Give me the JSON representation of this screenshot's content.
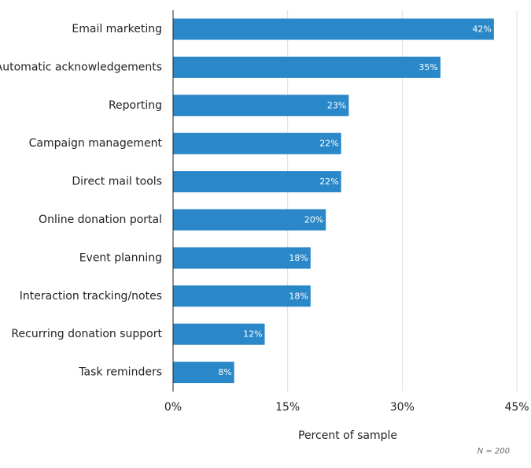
{
  "chart_data": {
    "type": "bar",
    "orientation": "horizontal",
    "categories": [
      "Email marketing",
      "Automatic acknowledgements",
      "Reporting",
      "Campaign management",
      "Direct mail tools",
      "Online donation portal",
      "Event planning",
      "Interaction tracking/notes",
      "Recurring donation support",
      "Task reminders"
    ],
    "values": [
      42,
      35,
      23,
      22,
      22,
      20,
      18,
      18,
      12,
      8
    ],
    "value_labels": [
      "42%",
      "35%",
      "23%",
      "22%",
      "22%",
      "20%",
      "18%",
      "18%",
      "12%",
      "8%"
    ],
    "xlabel": "Percent of sample",
    "xlim": [
      0,
      45
    ],
    "xticks": [
      0,
      15,
      30,
      45
    ],
    "xtick_labels": [
      "0%",
      "15%",
      "30%",
      "45%"
    ],
    "grid": "vertical",
    "legend": "none",
    "note": "N = 200",
    "colors": {
      "bar": "#2a88c8",
      "grid": "#dddddd",
      "axis": "#222222",
      "data_label": "#ffffff",
      "note": "#666666"
    }
  }
}
